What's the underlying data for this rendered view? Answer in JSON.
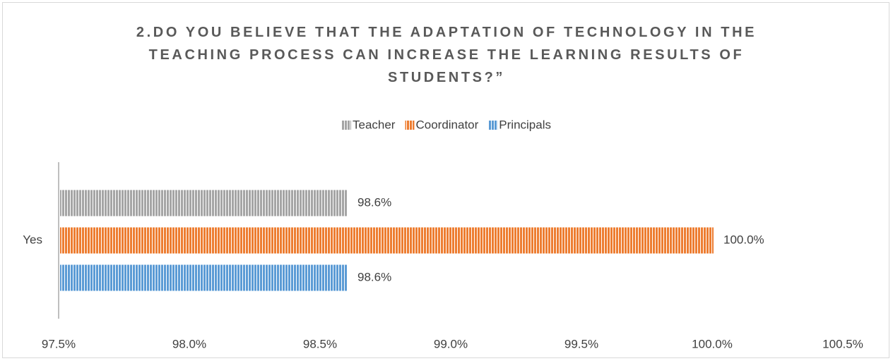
{
  "chart_data": {
    "type": "barh",
    "title": "2.DO YOU BELIEVE THAT THE ADAPTATION OF TECHNOLOGY IN THE TEACHING PROCESS CAN INCREASE THE LEARNING RESULTS OF STUDENTS?”",
    "categories": [
      "Yes"
    ],
    "series": [
      {
        "name": "Teacher",
        "color": "#a5a5a5",
        "values": [
          98.6
        ],
        "value_labels": [
          "98.6%"
        ]
      },
      {
        "name": "Coordinator",
        "color": "#ed7d31",
        "values": [
          100.0
        ],
        "value_labels": [
          "100.0%"
        ]
      },
      {
        "name": "Principals",
        "color": "#5b9bd5",
        "values": [
          98.6
        ],
        "value_labels": [
          "98.6%"
        ]
      }
    ],
    "xlim": [
      97.5,
      100.5
    ],
    "xticks": [
      {
        "value": 97.5,
        "label": "97.5%"
      },
      {
        "value": 98.0,
        "label": "98.0%"
      },
      {
        "value": 98.5,
        "label": "98.5%"
      },
      {
        "value": 99.0,
        "label": "99.0%"
      },
      {
        "value": 99.5,
        "label": "99.5%"
      },
      {
        "value": 100.0,
        "label": "100.0%"
      },
      {
        "value": 100.5,
        "label": "100.5%"
      }
    ],
    "legend": "top",
    "pattern": "vertical-stripes"
  }
}
